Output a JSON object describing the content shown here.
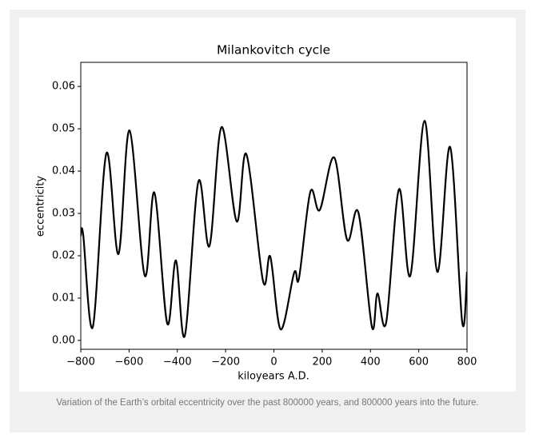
{
  "chart_data": {
    "type": "line",
    "title": "Milankovitch cycle",
    "xlabel": "kiloyears A.D.",
    "ylabel": "eccentricity",
    "x": [
      -800,
      -790,
      -750,
      -694,
      -644,
      -598,
      -535,
      -495,
      -442,
      -406,
      -369,
      -313,
      -267,
      -217,
      -154,
      -114,
      -45,
      -15,
      28,
      84,
      104,
      151,
      190,
      250,
      303,
      350,
      406,
      429,
      465,
      518,
      565,
      624,
      677,
      730,
      780,
      800
    ],
    "series": [
      {
        "color": "#000000",
        "values": [
          0.0247,
          0.025,
          0.0032,
          0.0442,
          0.0204,
          0.0496,
          0.0153,
          0.0349,
          0.004,
          0.0189,
          0.0011,
          0.0375,
          0.0223,
          0.0504,
          0.0281,
          0.044,
          0.014,
          0.0198,
          0.0026,
          0.016,
          0.0147,
          0.0351,
          0.0308,
          0.0432,
          0.0238,
          0.0302,
          0.0032,
          0.0111,
          0.0042,
          0.0357,
          0.0153,
          0.0519,
          0.0162,
          0.0457,
          0.0043,
          0.0162
        ]
      }
    ],
    "xlim": [
      -800,
      800
    ],
    "xticks": [
      {
        "value": -800,
        "label": "−800"
      },
      {
        "value": -600,
        "label": "−600"
      },
      {
        "value": -400,
        "label": "−400"
      },
      {
        "value": -200,
        "label": "−200"
      },
      0,
      200,
      400,
      600,
      800
    ],
    "ylim": [
      -0.0021,
      0.0657
    ],
    "yticks": [
      {
        "value": 0,
        "label": "0.00"
      },
      0.01,
      0.02,
      0.03,
      0.04,
      0.05,
      0.06
    ],
    "caption": "Variation of the Earth’s orbital eccentricity over the past 800000 years, and 800000 years into the future."
  }
}
